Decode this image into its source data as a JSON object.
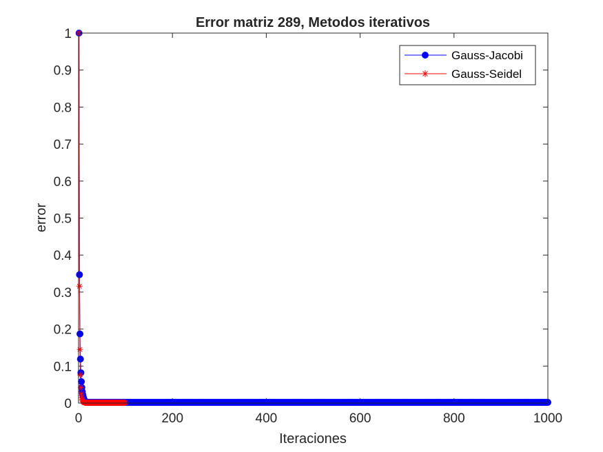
{
  "chart_data": {
    "type": "line",
    "title": "Error matriz 289, Metodos iterativos",
    "xlabel": "Iteraciones",
    "ylabel": "error",
    "xlim": [
      0,
      1000
    ],
    "ylim": [
      0,
      1
    ],
    "x_ticks": [
      "0",
      "200",
      "400",
      "600",
      "800",
      "1000"
    ],
    "y_ticks": [
      "0",
      "0.1",
      "0.2",
      "0.3",
      "0.4",
      "0.5",
      "0.6",
      "0.7",
      "0.8",
      "0.9",
      "1"
    ],
    "grid": false,
    "legend_position": "top-right",
    "series": [
      {
        "name": "Gauss-Jacobi",
        "color": "#0000ff",
        "marker": "circle",
        "lead_x": [
          1,
          2,
          3,
          4,
          5,
          6,
          7,
          8,
          9,
          10,
          11,
          12,
          13,
          14,
          15
        ],
        "lead_y": [
          1.0,
          0.347,
          0.187,
          0.119,
          0.082,
          0.058,
          0.042,
          0.031,
          0.023,
          0.017,
          0.013,
          0.009,
          0.007,
          0.005,
          0.004
        ],
        "tail_x_range": [
          16,
          1000
        ],
        "tail_y": 0.002
      },
      {
        "name": "Gauss-Seidel",
        "color": "#ff0000",
        "marker": "asterisk",
        "lead_x": [
          1,
          2,
          3,
          4,
          5,
          6,
          7,
          8,
          9,
          10,
          11,
          12
        ],
        "lead_y": [
          1.0,
          0.316,
          0.145,
          0.076,
          0.042,
          0.025,
          0.015,
          0.009,
          0.006,
          0.004,
          0.003,
          0.002
        ],
        "tail_x_range": [
          13,
          100
        ],
        "tail_y": 0.001
      }
    ]
  }
}
